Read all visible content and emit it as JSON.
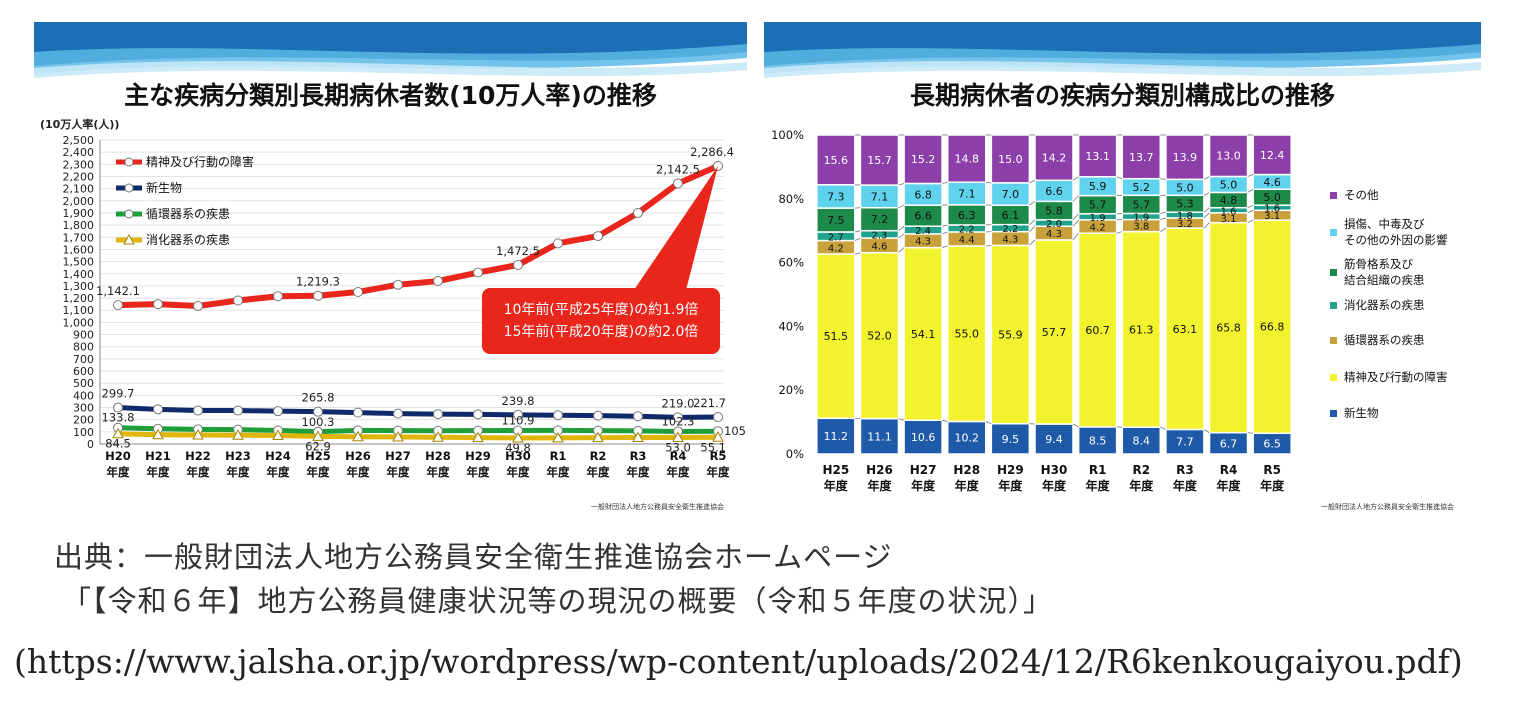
{
  "chart_data": [
    {
      "type": "line",
      "title": "主な疾病分類別長期病休者数(10万人率)の推移",
      "ylabel": "(10万人率(人))",
      "ylim": [
        0,
        2500
      ],
      "ytick_step": 100,
      "categories": [
        "H20 年度",
        "H21 年度",
        "H22 年度",
        "H23 年度",
        "H24 年度",
        "H25 年度",
        "H26 年度",
        "H27 年度",
        "H28 年度",
        "H29 年度",
        "H30 年度",
        "R1 年度",
        "R2 年度",
        "R3 年度",
        "R4 年度",
        "R5 年度"
      ],
      "cat_top": [
        "H20",
        "H21",
        "H22",
        "H23",
        "H24",
        "H25",
        "H26",
        "H27",
        "H28",
        "H29",
        "H30",
        "R1",
        "R2",
        "R3",
        "R4",
        "R5"
      ],
      "cat_bottom": "年度",
      "grid": true,
      "legend_position": "top-left",
      "series": [
        {
          "name": "精神及び行動の障害",
          "color": "#e8261c",
          "values": [
            1142.1,
            1150,
            1135,
            1180,
            1215,
            1219.3,
            1250,
            1310,
            1340,
            1410,
            1472.5,
            1650,
            1710,
            1900,
            2142.5,
            2286.4
          ]
        },
        {
          "name": "新生物",
          "color": "#0f2a6b",
          "values": [
            299.7,
            285,
            275,
            275,
            270,
            265.8,
            258,
            250,
            246,
            244,
            239.8,
            236,
            233,
            228,
            219.0,
            221.7
          ]
        },
        {
          "name": "循環器系の疾患",
          "color": "#1f9e3a",
          "values": [
            133.8,
            125,
            120,
            118,
            112,
            100.3,
            112,
            110,
            109,
            110,
            110.9,
            112,
            110,
            108,
            102.3,
            105.1
          ]
        },
        {
          "name": "消化器系の疾患",
          "color": "#e0b60c",
          "values": [
            84.5,
            76,
            74,
            72,
            70,
            62.9,
            60,
            58,
            56,
            52,
            49.8,
            50,
            52,
            53,
            53.0,
            55.1
          ]
        }
      ],
      "value_labels": [
        {
          "series": 0,
          "index": 0,
          "text": "1,142.1"
        },
        {
          "series": 0,
          "index": 5,
          "text": "1,219.3"
        },
        {
          "series": 0,
          "index": 10,
          "text": "1,472.5"
        },
        {
          "series": 0,
          "index": 14,
          "text": "2,142.5"
        },
        {
          "series": 0,
          "index": 15,
          "text": "2,286.4"
        },
        {
          "series": 1,
          "index": 0,
          "text": "299.7"
        },
        {
          "series": 1,
          "index": 5,
          "text": "265.8"
        },
        {
          "series": 1,
          "index": 10,
          "text": "239.8"
        },
        {
          "series": 1,
          "index": 14,
          "text": "219.0"
        },
        {
          "series": 1,
          "index": 15,
          "text": "221.7"
        },
        {
          "series": 2,
          "index": 0,
          "text": "133.8"
        },
        {
          "series": 2,
          "index": 5,
          "text": "100.3"
        },
        {
          "series": 2,
          "index": 10,
          "text": "110.9"
        },
        {
          "series": 2,
          "index": 14,
          "text": "102.3"
        },
        {
          "series": 2,
          "index": 15,
          "text": "105.1"
        },
        {
          "series": 3,
          "index": 0,
          "text": "84.5"
        },
        {
          "series": 3,
          "index": 5,
          "text": "62.9"
        },
        {
          "series": 3,
          "index": 10,
          "text": "49.8"
        },
        {
          "series": 3,
          "index": 14,
          "text": "53.0"
        },
        {
          "series": 3,
          "index": 15,
          "text": "55.1"
        }
      ],
      "callout": [
        "10年前(平成25年度)の約1.9倍",
        "15年前(平成20年度)の約2.0倍"
      ],
      "callout_color": "#e8261c",
      "footer": "一般財団法人地方公務員安全衛生推進協会"
    },
    {
      "type": "bar",
      "stacked": true,
      "title": "長期病休者の疾病分類別構成比の推移",
      "ylim": [
        0,
        100
      ],
      "yticks": [
        "0%",
        "20%",
        "40%",
        "60%",
        "80%",
        "100%"
      ],
      "categories": [
        "H25 年度",
        "H26 年度",
        "H27 年度",
        "H28 年度",
        "H29 年度",
        "H30 年度",
        "R1 年度",
        "R2 年度",
        "R3 年度",
        "R4 年度",
        "R5 年度"
      ],
      "cat_top": [
        "H25",
        "H26",
        "H27",
        "H28",
        "H29",
        "H30",
        "R1",
        "R2",
        "R3",
        "R4",
        "R5"
      ],
      "cat_bottom": "年度",
      "legend_position": "right",
      "series": [
        {
          "name": "新生物",
          "color": "#1f5aa8",
          "values": [
            11.2,
            11.1,
            10.6,
            10.2,
            9.5,
            9.4,
            8.5,
            8.4,
            7.7,
            6.7,
            6.5
          ]
        },
        {
          "name": "精神及び行動の障害",
          "color": "#f2f22e",
          "values": [
            51.5,
            52.0,
            54.1,
            55.0,
            55.9,
            57.7,
            60.7,
            61.3,
            63.1,
            65.8,
            66.8
          ]
        },
        {
          "name": "循環器系の疾患",
          "color": "#c8a13a",
          "values": [
            4.2,
            4.6,
            4.3,
            4.4,
            4.3,
            4.3,
            4.2,
            3.8,
            3.2,
            3.1,
            3.1
          ]
        },
        {
          "name": "消化器系の疾患",
          "color": "#21a28c",
          "values": [
            2.7,
            2.3,
            2.4,
            2.2,
            2.2,
            2.0,
            1.9,
            1.9,
            1.8,
            1.6,
            1.6
          ]
        },
        {
          "name": "筋骨格系及び\n結合組織の疾患",
          "color": "#1e8a4a",
          "values": [
            7.5,
            7.2,
            6.6,
            6.3,
            6.1,
            5.8,
            5.7,
            5.7,
            5.3,
            4.8,
            5.0
          ]
        },
        {
          "name": "損傷、中毒及び\nその他の外因の影響",
          "color": "#5fd3ee",
          "values": [
            7.3,
            7.1,
            6.8,
            7.1,
            7.0,
            6.6,
            5.9,
            5.2,
            5.0,
            5.0,
            4.6
          ]
        },
        {
          "name": "その他",
          "color": "#8c3fa8",
          "values": [
            15.6,
            15.7,
            15.2,
            14.8,
            15.0,
            14.2,
            13.1,
            13.7,
            13.9,
            13.0,
            12.4
          ]
        }
      ],
      "legend": [
        "その他",
        "損傷、中毒及び\nその他の外因の影響",
        "筋骨格系及び\n結合組織の疾患",
        "消化器系の疾患",
        "循環器系の疾患",
        "精神及び行動の障害",
        "新生物"
      ],
      "legend_colors": [
        "#8c3fa8",
        "#5fd3ee",
        "#1e8a4a",
        "#21a28c",
        "#c8a13a",
        "#f2f22e",
        "#1f5aa8"
      ],
      "footer": "一般財団法人地方公務員安全衛生推進協会"
    }
  ],
  "source": {
    "line1": "出典：一般財団法人地方公務員安全衛生推進協会ホームページ",
    "line2": "「【令和６年】地方公務員健康状況等の現況の概要（令和５年度の状況）」",
    "url": "(https://www.jalsha.or.jp/wordpress/wp-content/uploads/2024/12/R6kenkougaiyou.pdf)"
  }
}
